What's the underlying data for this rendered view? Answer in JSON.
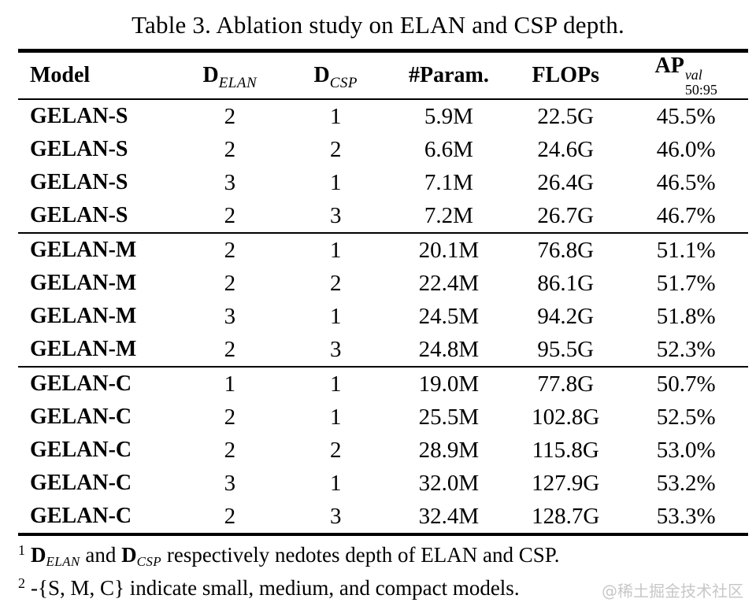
{
  "page": {
    "title": "Table 3. Ablation study on ELAN and CSP depth.",
    "watermark": "@稀土掘金技术社区"
  },
  "table": {
    "columns": {
      "model": "Model",
      "d_elan": {
        "base": "D",
        "sub": "ELAN"
      },
      "d_csp": {
        "base": "D",
        "sub": "CSP"
      },
      "params": "#Param.",
      "flops": "FLOPs",
      "ap": {
        "base": "AP",
        "sup": "val",
        "sub": "50:95"
      }
    },
    "sections": [
      {
        "rows": [
          [
            "GELAN-S",
            "2",
            "1",
            "5.9M",
            "22.5G",
            "45.5%"
          ],
          [
            "GELAN-S",
            "2",
            "2",
            "6.6M",
            "24.6G",
            "46.0%"
          ],
          [
            "GELAN-S",
            "3",
            "1",
            "7.1M",
            "26.4G",
            "46.5%"
          ],
          [
            "GELAN-S",
            "2",
            "3",
            "7.2M",
            "26.7G",
            "46.7%"
          ]
        ]
      },
      {
        "rows": [
          [
            "GELAN-M",
            "2",
            "1",
            "20.1M",
            "76.8G",
            "51.1%"
          ],
          [
            "GELAN-M",
            "2",
            "2",
            "22.4M",
            "86.1G",
            "51.7%"
          ],
          [
            "GELAN-M",
            "3",
            "1",
            "24.5M",
            "94.2G",
            "51.8%"
          ],
          [
            "GELAN-M",
            "2",
            "3",
            "24.8M",
            "95.5G",
            "52.3%"
          ]
        ]
      },
      {
        "rows": [
          [
            "GELAN-C",
            "1",
            "1",
            "19.0M",
            "77.8G",
            "50.7%"
          ],
          [
            "GELAN-C",
            "2",
            "1",
            "25.5M",
            "102.8G",
            "52.5%"
          ],
          [
            "GELAN-C",
            "2",
            "2",
            "28.9M",
            "115.8G",
            "53.0%"
          ],
          [
            "GELAN-C",
            "3",
            "1",
            "32.0M",
            "127.9G",
            "53.2%"
          ],
          [
            "GELAN-C",
            "2",
            "3",
            "32.4M",
            "128.7G",
            "53.3%"
          ]
        ]
      }
    ]
  },
  "footnotes": {
    "note1": {
      "marker": "1",
      "math1_base": "D",
      "math1_sub": "ELAN",
      "mid": " and ",
      "math2_base": "D",
      "math2_sub": "CSP",
      "rest": " respectively nedotes depth of ELAN and CSP."
    },
    "note2": {
      "marker": "2",
      "text": "-{S, M, C} indicate small, medium, and compact models."
    }
  }
}
